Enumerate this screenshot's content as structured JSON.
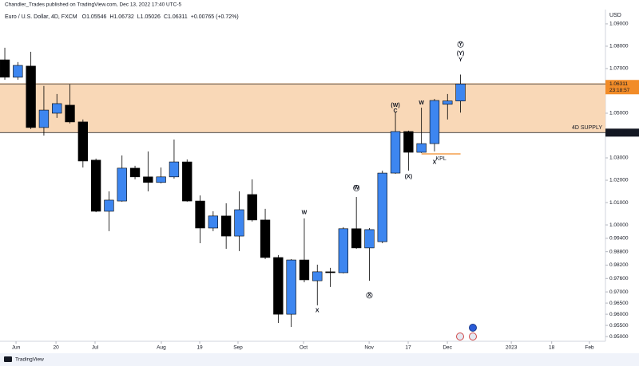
{
  "header": {
    "published": "Chandler_Trades published on TradingView.com, Dec 13, 2022 17:40 UTC-5",
    "symbol": "Euro / U.S. Dollar, 4D, FXCM",
    "ohlc": [
      "O1.05546",
      "H1.06732",
      "L1.05026",
      "C1.06311",
      "+0.00765 (+0.72%)"
    ]
  },
  "footer": {
    "brand": "TradingView"
  },
  "chart_data": {
    "type": "candlestick",
    "x": [
      0,
      1,
      2,
      3,
      4,
      5,
      6,
      7,
      8,
      9,
      10,
      11,
      12,
      13,
      14,
      15,
      16,
      17,
      18,
      19,
      20,
      21,
      22,
      23,
      24,
      25,
      26,
      27,
      28,
      29,
      30,
      31,
      32,
      33,
      34,
      35
    ],
    "open": [
      1.0739,
      1.0661,
      1.0711,
      1.0436,
      1.05,
      1.0536,
      1.0461,
      1.029,
      1.0061,
      1.0107,
      1.0254,
      1.0215,
      1.019,
      1.0215,
      1.0282,
      1.0107,
      0.9986,
      1.004,
      0.995,
      1.0136,
      1.0022,
      0.9854,
      0.96,
      0.9843,
      0.975,
      0.979,
      0.9786,
      0.9983,
      0.9897,
      0.9925,
      1.0232,
      1.0418,
      1.0325,
      1.0364,
      1.054,
      1.05546
    ],
    "high": [
      1.0793,
      1.0729,
      1.0775,
      1.0622,
      1.0586,
      1.0629,
      1.0472,
      1.0297,
      1.015,
      1.0311,
      1.0265,
      1.0329,
      1.0257,
      1.0382,
      1.0293,
      1.0132,
      1.0061,
      1.0097,
      1.015,
      1.0204,
      1.0072,
      0.9865,
      0.9847,
      1.0029,
      0.9822,
      0.9808,
      0.999,
      1.0125,
      0.9986,
      1.0243,
      1.0507,
      1.0422,
      1.0525,
      1.0564,
      1.0586,
      1.06732
    ],
    "low": [
      1.065,
      1.065,
      1.0429,
      1.04,
      1.0479,
      1.0454,
      1.0257,
      1.0057,
      0.9972,
      1.0104,
      1.0204,
      1.015,
      1.0186,
      1.0207,
      1.0104,
      0.9918,
      0.9972,
      0.9893,
      0.9883,
      1.0015,
      0.9847,
      0.9561,
      0.9543,
      0.9743,
      0.964,
      0.9722,
      0.9783,
      0.9893,
      0.975,
      0.9918,
      1.0229,
      1.0243,
      1.0322,
      1.0329,
      1.0472,
      1.05026
    ],
    "close": [
      1.0661,
      1.0714,
      1.0436,
      1.0514,
      1.0543,
      1.0461,
      1.0286,
      1.0061,
      1.0111,
      1.0254,
      1.0215,
      1.019,
      1.0215,
      1.0282,
      1.0107,
      0.9986,
      1.004,
      0.995,
      1.0068,
      1.0022,
      0.9854,
      0.96,
      0.9843,
      0.9754,
      0.979,
      0.9786,
      0.9983,
      0.9897,
      0.9979,
      1.0232,
      1.0418,
      1.0325,
      1.0364,
      1.0557,
      1.0555,
      1.06311
    ],
    "up_color": "#3d86f0",
    "down_color": "#000000",
    "xlim": [
      -0.37,
      46.13
    ],
    "xticks": [
      {
        "value": 0.86,
        "label": "Jun"
      },
      {
        "value": 3.93,
        "label": "20"
      },
      {
        "value": 6.93,
        "label": "Jul"
      },
      {
        "value": 12.02,
        "label": "Aug"
      },
      {
        "value": 14.97,
        "label": "19"
      },
      {
        "value": 17.91,
        "label": "Sep"
      },
      {
        "value": 22.94,
        "label": "Oct"
      },
      {
        "value": 27.98,
        "label": "Nov"
      },
      {
        "value": 30.98,
        "label": "17"
      },
      {
        "value": 33.99,
        "label": "Dec"
      },
      {
        "value": 38.9,
        "label": "2023"
      },
      {
        "value": 42.0,
        "label": "18"
      },
      {
        "value": 44.9,
        "label": "Feb"
      }
    ],
    "ylim": [
      0.9479,
      1.0964
    ],
    "y_axis_label": "USD",
    "yticks": [
      {
        "value": 1.09,
        "label": "1.09000"
      },
      {
        "value": 1.08,
        "label": "1.08000"
      },
      {
        "value": 1.07,
        "label": "1.07000"
      },
      {
        "value": 1.05,
        "label": "1.05000"
      },
      {
        "value": 1.03,
        "label": "1.03000"
      },
      {
        "value": 1.02,
        "label": "1.02000"
      },
      {
        "value": 1.01,
        "label": "1.01000"
      },
      {
        "value": 1,
        "label": "1.00000"
      },
      {
        "value": 0.994,
        "label": "0.99400"
      },
      {
        "value": 0.988,
        "label": "0.98800"
      },
      {
        "value": 0.982,
        "label": "0.98200"
      },
      {
        "value": 0.976,
        "label": "0.97600"
      },
      {
        "value": 0.97,
        "label": "0.97000"
      },
      {
        "value": 0.965,
        "label": "0.96500"
      },
      {
        "value": 0.96,
        "label": "0.96000"
      },
      {
        "value": 0.955,
        "label": "0.95500"
      },
      {
        "value": 0.95,
        "label": "0.95000"
      }
    ],
    "last_price": {
      "value": 1.06311,
      "label": "1.06311",
      "countdown": "23:18:57",
      "color": "#f28c28"
    },
    "zone": {
      "label": "4D SUPPLY",
      "low": {
        "value": 1.04131,
        "label": "1.04131"
      },
      "high": 1.0635,
      "color": "#f9d8b7",
      "label_color": "#f28c28"
    },
    "kpl": {
      "label": "KPL",
      "x1": 32,
      "x2": 35,
      "y": 1.0318,
      "color": "#f28c28"
    },
    "annotations": [
      {
        "text": "W",
        "x": 23,
        "y": 1.0055
      },
      {
        "text": "X",
        "x": 24,
        "y": 0.9615
      },
      {
        "text": "W",
        "x": 27,
        "y": 1.0165,
        "circled": true
      },
      {
        "text": "X",
        "x": 28,
        "y": 0.9685,
        "circled": true
      },
      {
        "text": "(W)",
        "x": 30,
        "y": 1.0535
      },
      {
        "text": "C",
        "x": 30,
        "y": 1.051
      },
      {
        "text": "(X)",
        "x": 31,
        "y": 1.0215
      },
      {
        "text": "W",
        "x": 32,
        "y": 1.0545
      },
      {
        "text": "X",
        "x": 33,
        "y": 1.028
      },
      {
        "text": "Y",
        "x": 35,
        "y": 1.0808,
        "circled": true
      },
      {
        "text": "(Y)",
        "x": 35,
        "y": 1.0768
      },
      {
        "text": "Y",
        "x": 35,
        "y": 1.0738
      }
    ]
  }
}
